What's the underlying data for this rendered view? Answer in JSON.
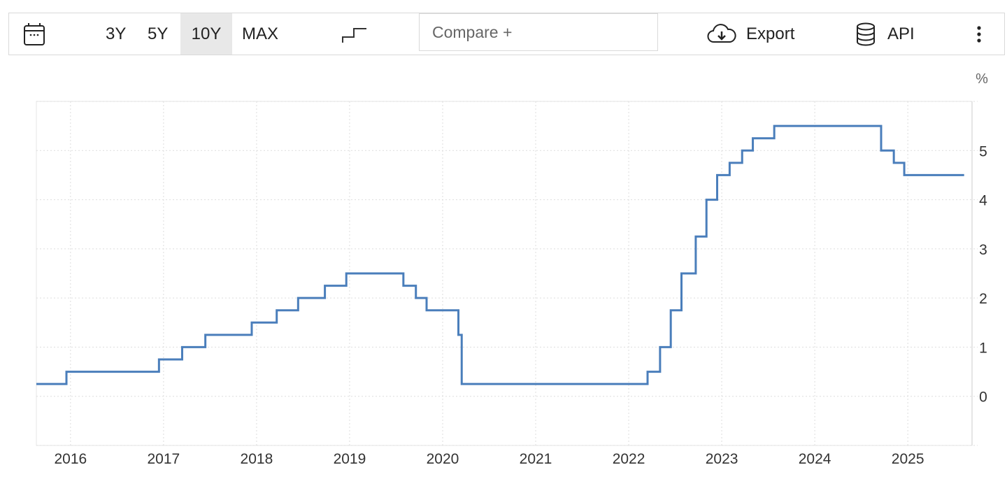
{
  "toolbar": {
    "ranges": [
      "3Y",
      "5Y",
      "10Y",
      "MAX"
    ],
    "active_range": "10Y",
    "compare_placeholder": "Compare +",
    "export_label": "Export",
    "api_label": "API"
  },
  "chart_data": {
    "type": "line",
    "step": true,
    "unit": "%",
    "ylim": [
      -1,
      6
    ],
    "yticks": [
      0,
      1,
      2,
      3,
      4,
      5
    ],
    "xlim": [
      "2015-08-20",
      "2025-09-10"
    ],
    "xticks": [
      "2016",
      "2017",
      "2018",
      "2019",
      "2020",
      "2021",
      "2022",
      "2023",
      "2024",
      "2025"
    ],
    "grid": true,
    "color": "#4a7ebb",
    "series": [
      {
        "points": [
          [
            "2015-08-20",
            0.25
          ],
          [
            "2015-12-16",
            0.5
          ],
          [
            "2016-12-14",
            0.75
          ],
          [
            "2017-03-15",
            1.0
          ],
          [
            "2017-06-14",
            1.25
          ],
          [
            "2017-12-13",
            1.5
          ],
          [
            "2018-03-21",
            1.75
          ],
          [
            "2018-06-13",
            2.0
          ],
          [
            "2018-09-26",
            2.25
          ],
          [
            "2018-12-19",
            2.5
          ],
          [
            "2019-07-31",
            2.25
          ],
          [
            "2019-09-18",
            2.0
          ],
          [
            "2019-10-30",
            1.75
          ],
          [
            "2020-03-03",
            1.25
          ],
          [
            "2020-03-16",
            0.25
          ],
          [
            "2022-03-16",
            0.5
          ],
          [
            "2022-05-04",
            1.0
          ],
          [
            "2022-06-15",
            1.75
          ],
          [
            "2022-07-27",
            2.5
          ],
          [
            "2022-09-21",
            3.25
          ],
          [
            "2022-11-02",
            4.0
          ],
          [
            "2022-12-14",
            4.5
          ],
          [
            "2023-02-01",
            4.75
          ],
          [
            "2023-03-22",
            5.0
          ],
          [
            "2023-05-03",
            5.25
          ],
          [
            "2023-07-26",
            5.5
          ],
          [
            "2024-09-18",
            5.0
          ],
          [
            "2024-11-07",
            4.75
          ],
          [
            "2024-12-18",
            4.5
          ],
          [
            "2025-08-10",
            4.5
          ]
        ]
      }
    ]
  }
}
